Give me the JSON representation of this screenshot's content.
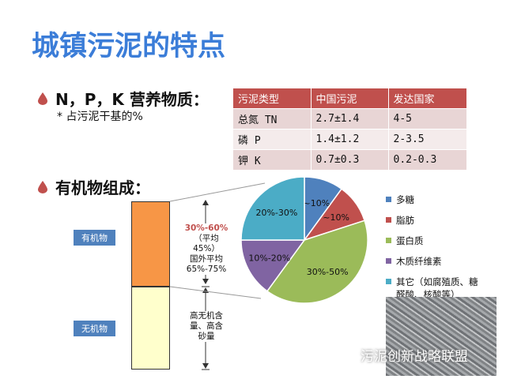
{
  "title": "城镇污泥的特点",
  "section1": {
    "heading": "N，P，K 营养物质：",
    "note": "* 占污泥干基的%"
  },
  "table": {
    "headers": [
      "污泥类型",
      "中国污泥",
      "发达国家"
    ],
    "rows": [
      [
        "总氮 TN",
        "2.7±1.4",
        "4-5"
      ],
      [
        "磷 P",
        "1.4±1.2",
        "2-3.5"
      ],
      [
        "钾 K",
        "0.7±0.3",
        "0.2-0.3"
      ]
    ]
  },
  "section2": {
    "heading": "有机物组成："
  },
  "bar": {
    "organic_label": "有机物",
    "inorganic_label": "无机物",
    "organic_note_red": "30%-60%",
    "organic_note_lines": [
      "（平均",
      "45%）",
      "国外平均",
      "65%-75%"
    ],
    "inorganic_note_lines": [
      "高无机含",
      "量、高含",
      "砂量"
    ],
    "bar_fill_colors": {
      "organic": "#f79646",
      "inorganic": "#ffffcc"
    }
  },
  "chart_data": {
    "type": "pie",
    "slices": [
      {
        "name": "多糖",
        "label": "~10%",
        "value": 10,
        "color": "#4f81bd"
      },
      {
        "name": "脂肪",
        "label": "~10%",
        "value": 10,
        "color": "#c0504d"
      },
      {
        "name": "蛋白质",
        "label": "30%-50%",
        "value": 40,
        "color": "#9bbb59"
      },
      {
        "name": "木质纤维素",
        "label": "10%-20%",
        "value": 15,
        "color": "#8064a2"
      },
      {
        "name": "其它（如腐殖质、糖醛酸、核酸等）",
        "label": "20%-30%",
        "value": 25,
        "color": "#4bacc6"
      }
    ],
    "legend_labels": [
      "多糖",
      "脂肪",
      "蛋白质",
      "木质纤维素",
      "其它（如腐殖质、糖",
      "醛酸、核酸等）"
    ],
    "legend": "right"
  },
  "watermark": "污泥创新战略联盟",
  "colors": {
    "title": "#3b7dd8",
    "bullet": "#c0504d",
    "table_header": "#c0504d"
  }
}
